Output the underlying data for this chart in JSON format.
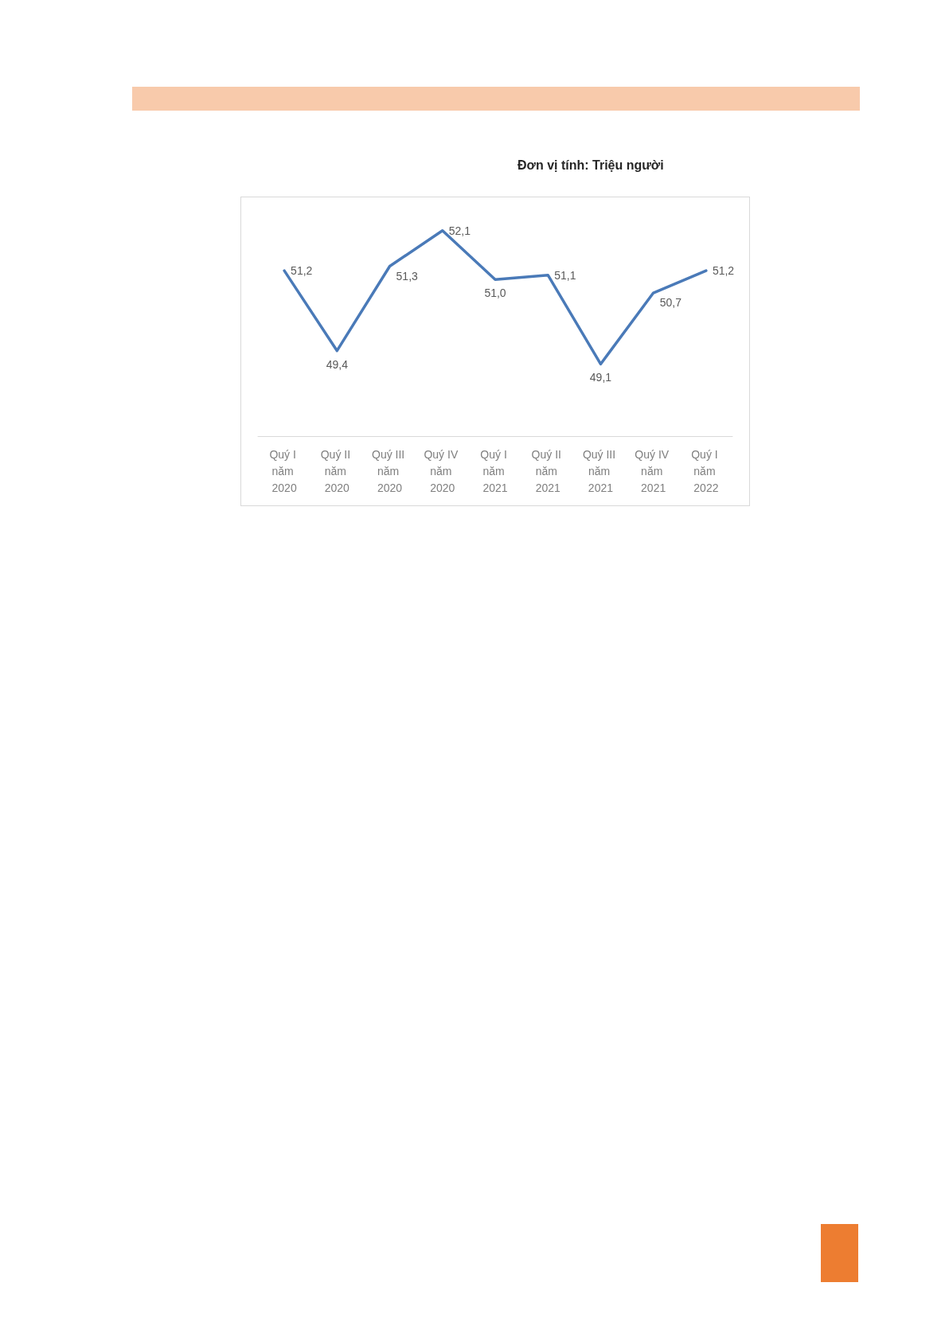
{
  "chart_data": {
    "type": "line",
    "annotations": [
      "Đơn vị tính: Triệu người"
    ],
    "categories": [
      "Quý I năm 2020",
      "Quý II năm 2020",
      "Quý III năm 2020",
      "Quý IV năm 2020",
      "Quý I năm 2021",
      "Quý II năm 2021",
      "Quý III năm 2021",
      "Quý IV năm 2021",
      "Quý I năm 2022"
    ],
    "values": [
      51.2,
      49.4,
      51.3,
      52.1,
      51.0,
      51.1,
      49.1,
      50.7,
      51.2
    ],
    "value_labels": [
      "51,2",
      "49,4",
      "51,3",
      "52,1",
      "51,0",
      "51,1",
      "49,1",
      "50,7",
      "51,2"
    ],
    "color": "#4a7ab8",
    "marker": "none",
    "line_style": "solid",
    "grid": false,
    "tick_labels": "x"
  }
}
